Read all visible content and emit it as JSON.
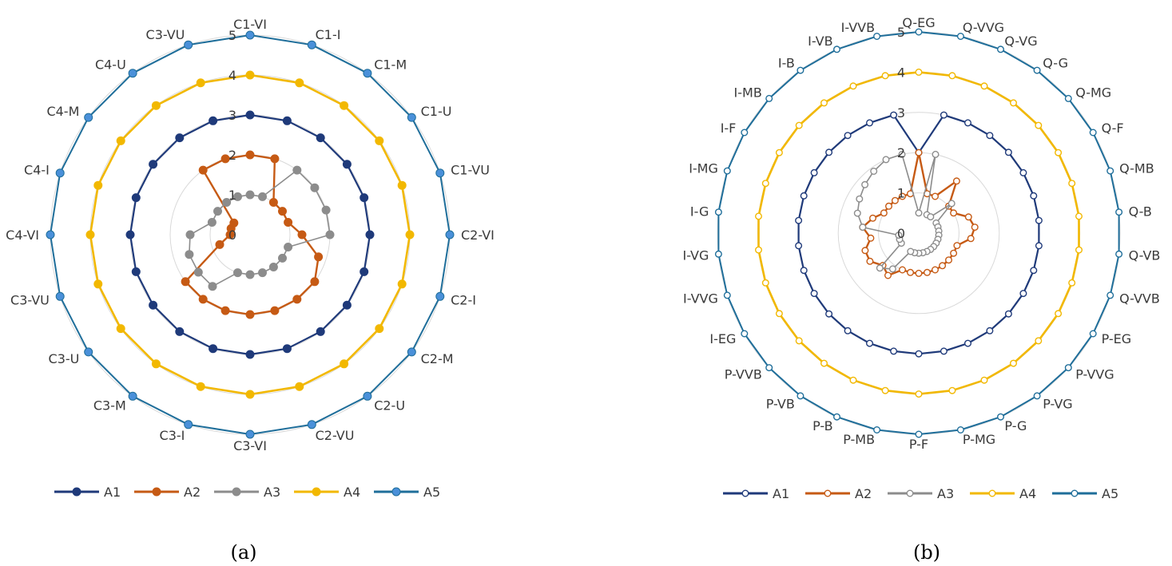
{
  "colors": {
    "A1": "#1f3a7a",
    "A2": "#c65a14",
    "A3": "#8c8c8c",
    "A4": "#f2b800",
    "A5": "#1f6e9a",
    "A5_marker": "#4a90d9",
    "grid": "#d9d9d9"
  },
  "chart_data": [
    {
      "type": "radar",
      "caption": "(a)",
      "rlim": [
        0,
        5
      ],
      "rticks": [
        "0",
        "1",
        "2",
        "3",
        "4",
        "5"
      ],
      "grid": true,
      "legend_position": "bottom",
      "categories": [
        "C1-VI",
        "C1-I",
        "C1-M",
        "C1-U",
        "C1-VU",
        "C2-VI",
        "C2-I",
        "C2-M",
        "C2-U",
        "C2-VU",
        "C3-VI",
        "C3-I",
        "C3-M",
        "C3-U",
        "C3-VU",
        "C4-VI",
        "C4-I",
        "C4-M",
        "C4-U",
        "C3-VU"
      ],
      "series": [
        {
          "name": "A1",
          "values": [
            3,
            3,
            3,
            3,
            3,
            3,
            3,
            3,
            3,
            3,
            3,
            3,
            3,
            3,
            3,
            3,
            3,
            3,
            3,
            3
          ]
        },
        {
          "name": "A2",
          "values": [
            2,
            2,
            1,
            1,
            1,
            1.3,
            1.8,
            2,
            2,
            2,
            2,
            2,
            2,
            2,
            0.8,
            0.5,
            0.5,
            0.5,
            2,
            2
          ]
        },
        {
          "name": "A3",
          "values": [
            1,
            1,
            2,
            2,
            2,
            2,
            1,
            1,
            1,
            1,
            1,
            1,
            1.6,
            1.6,
            1.6,
            1.5,
            1,
            1,
            1,
            1
          ]
        },
        {
          "name": "A4",
          "values": [
            4,
            4,
            4,
            4,
            4,
            4,
            4,
            4,
            4,
            4,
            4,
            4,
            4,
            4,
            4,
            4,
            4,
            4,
            4,
            4
          ]
        },
        {
          "name": "A5",
          "values": [
            5,
            5,
            5,
            5,
            5,
            5,
            5,
            5,
            5,
            5,
            5,
            5,
            5,
            5,
            5,
            5,
            5,
            5,
            5,
            5
          ]
        }
      ]
    },
    {
      "type": "radar",
      "caption": "(b)",
      "rlim": [
        0,
        5
      ],
      "rticks": [
        "0",
        "1",
        "2",
        "3",
        "4",
        "5"
      ],
      "grid": true,
      "legend_position": "bottom",
      "categories": [
        "Q-EG",
        "Q-VVG",
        "Q-VG",
        "Q-G",
        "Q-MG",
        "Q-F",
        "Q-MB",
        "Q-B",
        "Q-VB",
        "Q-VVB",
        "P-EG",
        "P-VVG",
        "P-VG",
        "P-G",
        "P-MG",
        "P-F",
        "P-MB",
        "P-B",
        "P-VB",
        "P-VVB",
        "I-EG",
        "I-VVG",
        "I-VG",
        "I-G",
        "I-MG",
        "I-F",
        "I-MB",
        "I-B",
        "I-VB",
        "I-VVB"
      ],
      "series": [
        {
          "name": "A1",
          "values": [
            2,
            3,
            3,
            3,
            3,
            3,
            3,
            3,
            3,
            3,
            3,
            3,
            3,
            3,
            3,
            3,
            3,
            3,
            3,
            3,
            3,
            3,
            3,
            3,
            3,
            3,
            3,
            3,
            3,
            3
          ]
        },
        {
          "name": "A2",
          "values": [
            2,
            1,
            1,
            1.6,
            1,
            1,
            1.3,
            1.4,
            1.3,
            1,
            1,
            1,
            1,
            1,
            1,
            1,
            1,
            1,
            1.3,
            1.2,
            1.4,
            1.4,
            1.2,
            1.4,
            1.2,
            1,
            1,
            1,
            1,
            1
          ]
        },
        {
          "name": "A3",
          "values": [
            0.5,
            2,
            0.5,
            0.5,
            1.1,
            0.5,
            0.5,
            0.5,
            0.5,
            0.5,
            0.5,
            0.5,
            0.5,
            0.5,
            0.5,
            0.5,
            0.5,
            0.5,
            1.1,
            1.3,
            0.5,
            0.5,
            0.5,
            1.4,
            1.6,
            1.7,
            1.8,
            1.9,
            2,
            2
          ]
        },
        {
          "name": "A4",
          "values": [
            4,
            4,
            4,
            4,
            4,
            4,
            4,
            4,
            4,
            4,
            4,
            4,
            4,
            4,
            4,
            4,
            4,
            4,
            4,
            4,
            4,
            4,
            4,
            4,
            4,
            4,
            4,
            4,
            4,
            4
          ]
        },
        {
          "name": "A5",
          "values": [
            5,
            5,
            5,
            5,
            5,
            5,
            5,
            5,
            5,
            5,
            5,
            5,
            5,
            5,
            5,
            5,
            5,
            5,
            5,
            5,
            5,
            5,
            5,
            5,
            5,
            5,
            5,
            5,
            5,
            5
          ]
        }
      ]
    }
  ]
}
